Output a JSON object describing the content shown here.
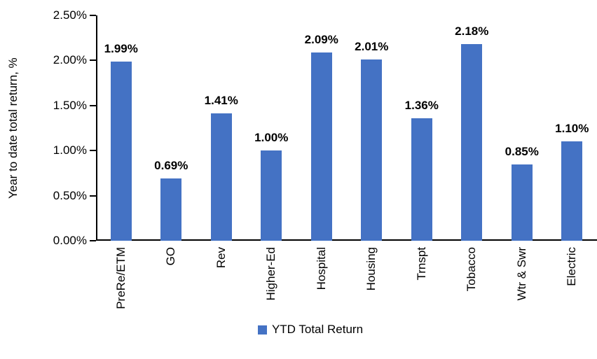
{
  "chart_data": {
    "type": "bar",
    "title": "",
    "xlabel": "",
    "ylabel": "Year to date total return, %",
    "categories": [
      "PreRe/ETM",
      "GO",
      "Rev",
      "Higher-Ed",
      "Hospital",
      "Housing",
      "Trnspt",
      "Tobacco",
      "Wtr & Swr",
      "Electric"
    ],
    "values": [
      1.99,
      0.69,
      1.41,
      1.0,
      2.09,
      2.01,
      1.36,
      2.18,
      0.85,
      1.1
    ],
    "data_labels": [
      "1.99%",
      "0.69%",
      "1.41%",
      "1.00%",
      "2.09%",
      "2.01%",
      "1.36%",
      "2.18%",
      "0.85%",
      "1.10%"
    ],
    "ylim": [
      0,
      2.5
    ],
    "ytick_labels": [
      "0.00%",
      "0.50%",
      "1.00%",
      "1.50%",
      "2.00%",
      "2.50%"
    ],
    "grid": false,
    "bar_color": "#4472C4",
    "axis_color": "#000000",
    "legend_position": "bottom-center",
    "legend": [
      {
        "label": "YTD Total Return",
        "color": "#4472C4"
      }
    ]
  }
}
